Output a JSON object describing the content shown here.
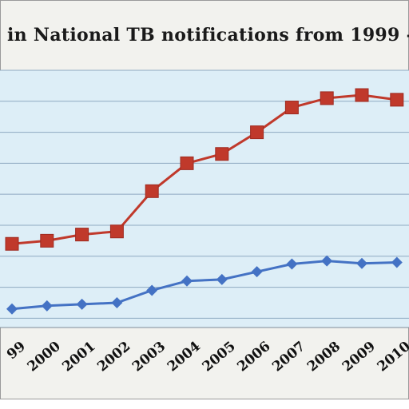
{
  "chart_data": {
    "type": "line",
    "title": "in National TB notifications from 1999 -",
    "categories": [
      "99",
      "2000",
      "2001",
      "2002",
      "2003",
      "2004",
      "2005",
      "2006",
      "2007",
      "2008",
      "2009",
      "2010"
    ],
    "series": [
      {
        "name": "",
        "color": "#c0392b",
        "marker": "square",
        "values": [
          2.4,
          2.5,
          2.7,
          2.8,
          4.1,
          5.0,
          5.3,
          6.0,
          6.8,
          7.1,
          7.2,
          7.05
        ]
      },
      {
        "name": "",
        "color": "#4472c4",
        "marker": "diamond",
        "values": [
          0.3,
          0.4,
          0.45,
          0.5,
          0.9,
          1.2,
          1.25,
          1.5,
          1.75,
          1.85,
          1.77,
          1.8
        ]
      }
    ],
    "ylim": [
      -0.3,
      8.0
    ],
    "grid": true,
    "plot_bg": "#ddeef7",
    "grid_color": "#8ea9c1"
  }
}
